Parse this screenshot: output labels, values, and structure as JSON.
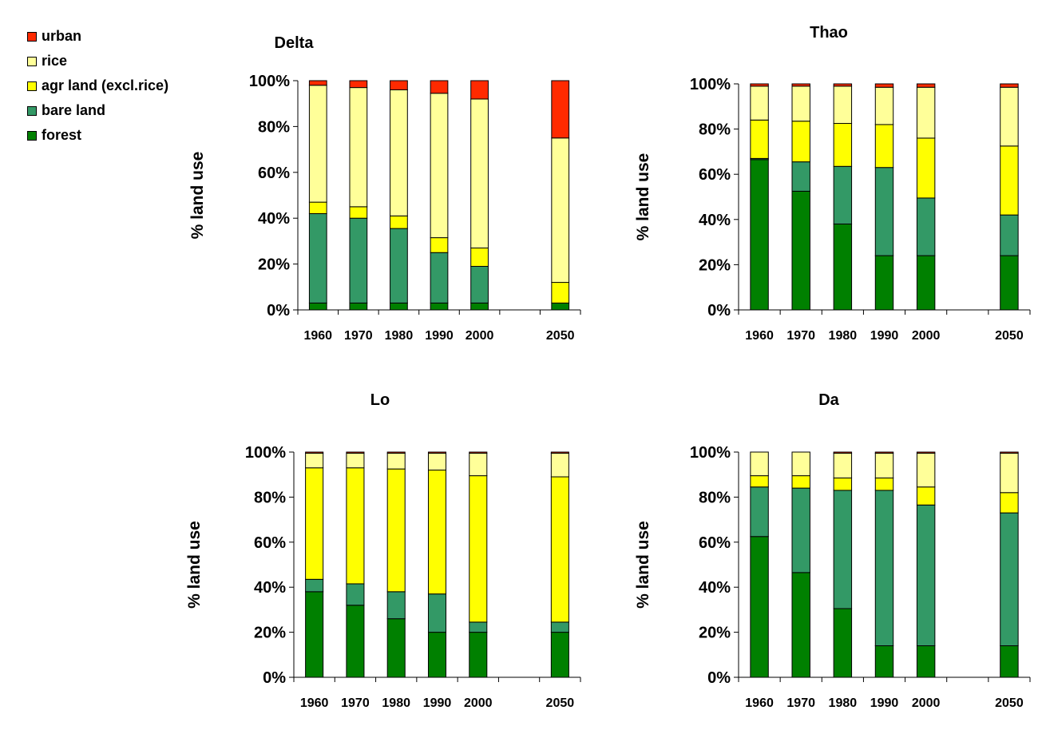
{
  "legend": [
    {
      "name": "urban",
      "color": "#ff2a00"
    },
    {
      "name": "rice",
      "color": "#ffff99"
    },
    {
      "name": "agr land (excl.rice)",
      "color": "#ffff00"
    },
    {
      "name": "bare land",
      "color": "#339966"
    },
    {
      "name": "forest",
      "color": "#008000"
    }
  ],
  "chart_data": [
    {
      "type": "bar",
      "stacked": true,
      "title": "Delta",
      "ylabel": "% land use",
      "xlabel": "",
      "ylim": [
        0,
        100
      ],
      "yticks": [
        "0%",
        "20%",
        "40%",
        "60%",
        "80%",
        "100%"
      ],
      "categories": [
        "1960",
        "1970",
        "1980",
        "1990",
        "2000",
        "",
        "2050"
      ],
      "series": [
        {
          "name": "forest",
          "values": [
            3,
            3,
            3,
            3,
            3,
            0,
            3
          ]
        },
        {
          "name": "bare land",
          "values": [
            39,
            37,
            32.5,
            22,
            16,
            0,
            0
          ]
        },
        {
          "name": "agr land (excl.rice)",
          "values": [
            5,
            5,
            5.5,
            6.5,
            8,
            0,
            9
          ]
        },
        {
          "name": "rice",
          "values": [
            51,
            52,
            55,
            63,
            65,
            0,
            63
          ]
        },
        {
          "name": "urban",
          "values": [
            2,
            3,
            4,
            5.5,
            8,
            0,
            25
          ]
        }
      ]
    },
    {
      "type": "bar",
      "stacked": true,
      "title": "Thao",
      "ylabel": "% land use",
      "xlabel": "",
      "ylim": [
        0,
        100
      ],
      "yticks": [
        "0%",
        "20%",
        "40%",
        "60%",
        "80%",
        "100%"
      ],
      "categories": [
        "1960",
        "1970",
        "1980",
        "1990",
        "2000",
        "",
        "2050"
      ],
      "series": [
        {
          "name": "forest",
          "values": [
            66.5,
            52.5,
            38,
            24,
            24,
            0,
            24
          ]
        },
        {
          "name": "bare land",
          "values": [
            0.5,
            13,
            25.5,
            39,
            25.5,
            0,
            18
          ]
        },
        {
          "name": "agr land (excl.rice)",
          "values": [
            17,
            18,
            19,
            19,
            26.5,
            0,
            30.5
          ]
        },
        {
          "name": "rice",
          "values": [
            15,
            15.5,
            16.5,
            16.5,
            22.5,
            0,
            26
          ]
        },
        {
          "name": "urban",
          "values": [
            1,
            1,
            1,
            1.5,
            1.5,
            0,
            1.5
          ]
        }
      ]
    },
    {
      "type": "bar",
      "stacked": true,
      "title": "Lo",
      "ylabel": "% land use",
      "xlabel": "",
      "ylim": [
        0,
        100
      ],
      "yticks": [
        "0%",
        "20%",
        "40%",
        "60%",
        "80%",
        "100%"
      ],
      "categories": [
        "1960",
        "1970",
        "1980",
        "1990",
        "2000",
        "",
        "2050"
      ],
      "series": [
        {
          "name": "forest",
          "values": [
            38,
            32,
            26,
            20,
            20,
            0,
            20
          ]
        },
        {
          "name": "bare land",
          "values": [
            5.5,
            9.5,
            12,
            17,
            4.5,
            0,
            4.5
          ]
        },
        {
          "name": "agr land (excl.rice)",
          "values": [
            49.5,
            51.5,
            54.5,
            55,
            65,
            0,
            64.5
          ]
        },
        {
          "name": "rice",
          "values": [
            6.5,
            6.5,
            7,
            7.5,
            10,
            0,
            10.5
          ]
        },
        {
          "name": "urban",
          "values": [
            0.5,
            0.5,
            0.5,
            0.5,
            0.5,
            0,
            0.5
          ]
        }
      ]
    },
    {
      "type": "bar",
      "stacked": true,
      "title": "Da",
      "ylabel": "% land use",
      "xlabel": "",
      "ylim": [
        0,
        100
      ],
      "yticks": [
        "0%",
        "20%",
        "40%",
        "60%",
        "80%",
        "100%"
      ],
      "categories": [
        "1960",
        "1970",
        "1980",
        "1990",
        "2000",
        "",
        "2050"
      ],
      "series": [
        {
          "name": "forest",
          "values": [
            62.5,
            46.5,
            30.5,
            14,
            14,
            0,
            14
          ]
        },
        {
          "name": "bare land",
          "values": [
            22,
            37.5,
            52.5,
            69,
            62.5,
            0,
            59
          ]
        },
        {
          "name": "agr land (excl.rice)",
          "values": [
            5,
            5.5,
            5.5,
            5.5,
            8,
            0,
            9
          ]
        },
        {
          "name": "rice",
          "values": [
            10.5,
            10.5,
            11,
            11,
            15,
            0,
            17.5
          ]
        },
        {
          "name": "urban",
          "values": [
            0,
            0,
            0.5,
            0.5,
            0.5,
            0,
            0.5
          ]
        }
      ]
    }
  ]
}
